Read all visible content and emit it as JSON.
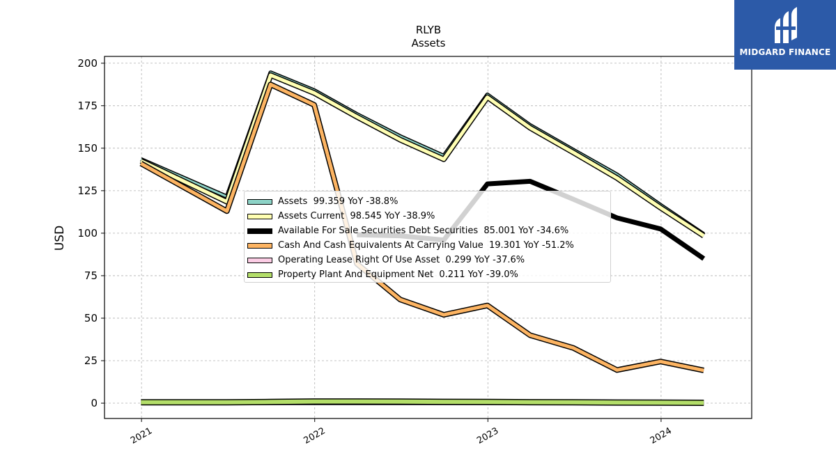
{
  "chart_data": {
    "type": "line",
    "title": "RLYB",
    "subtitle": "Assets",
    "xlabel": "",
    "ylabel": "USD",
    "x": [
      "2020-12-31",
      "2021-06-30",
      "2021-09-30",
      "2021-12-31",
      "2022-03-31",
      "2022-06-30",
      "2022-09-30",
      "2022-12-31",
      "2023-03-31",
      "2023-06-30",
      "2023-09-30",
      "2023-12-31",
      "2024-03-31"
    ],
    "x_ticks": [
      "2021",
      "2022",
      "2023",
      "2024"
    ],
    "ylim": [
      -9,
      204
    ],
    "y_ticks": [
      0,
      25,
      50,
      75,
      100,
      125,
      150,
      175,
      200
    ],
    "grid": true,
    "legend_position": "center",
    "series": [
      {
        "name": "Assets  99.359 YoY -38.8%",
        "color": "#8dd3c7",
        "width": 3,
        "values": [
          143.5,
          121.5,
          194.5,
          184,
          170,
          157,
          145.5,
          181.5,
          163.5,
          149,
          134.5,
          116.5,
          99.4
        ]
      },
      {
        "name": "Assets Current  98.545 YoY -38.9%",
        "color": "#ffffb3",
        "width": 5,
        "values": [
          142.5,
          118.5,
          193,
          182.5,
          168.5,
          155,
          143.5,
          180,
          162,
          147.5,
          132.5,
          115,
          98.5
        ]
      },
      {
        "name": "Available For Sale Securities Debt Securities  85.001 YoY -34.6%",
        "color": "#000000",
        "width": 7,
        "values": [
          null,
          null,
          null,
          null,
          99,
          98.5,
          96,
          129,
          130.5,
          120,
          109,
          102.5,
          85
        ]
      },
      {
        "name": "Cash And Cash Equivalents At Carrying Value  19.301 YoY -51.2%",
        "color": "#fdb462",
        "width": 5,
        "values": [
          141,
          113,
          187.5,
          175.5,
          82,
          61,
          52,
          57.5,
          40,
          32.5,
          19.5,
          24.5,
          19.3
        ]
      },
      {
        "name": "Operating Lease Right Of Use Asset  0.299 YoY -37.6%",
        "color": "#fccde5",
        "width": 5,
        "values": [
          0.5,
          0.5,
          0.5,
          0.5,
          0.5,
          0.5,
          0.5,
          0.5,
          0.5,
          0.5,
          0.4,
          0.35,
          0.3
        ]
      },
      {
        "name": "Property Plant And Equipment Net  0.211 YoY -39.0%",
        "color": "#b3de69",
        "width": 6,
        "values": [
          0.5,
          0.5,
          0.7,
          1.0,
          1.0,
          0.9,
          0.8,
          0.7,
          0.6,
          0.5,
          0.4,
          0.3,
          0.21
        ]
      }
    ]
  },
  "logo": {
    "text": "MIDGARD FINANCE",
    "background": "#2c5aa8"
  }
}
